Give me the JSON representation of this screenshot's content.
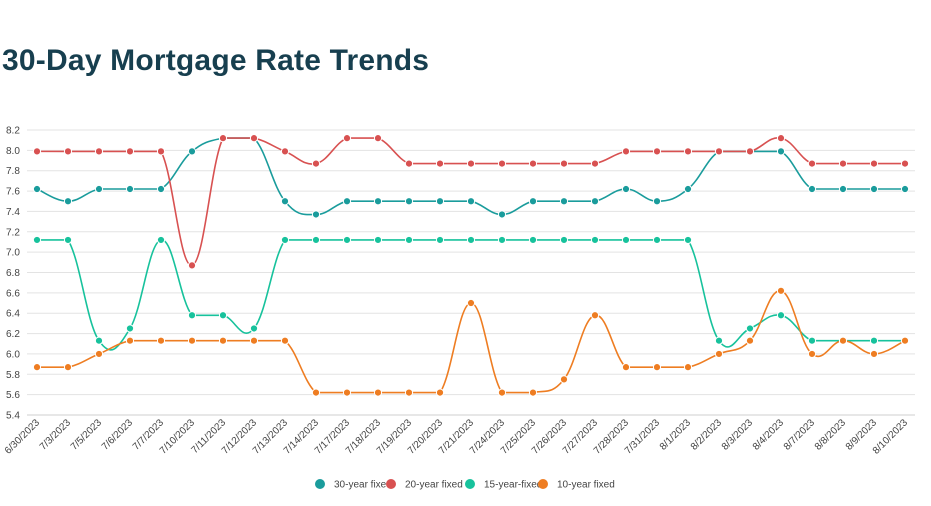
{
  "title": "30-Day Mortgage Rate Trends",
  "chart_data": {
    "type": "line",
    "title": "30-Day Mortgage Rate Trends",
    "xlabel": "",
    "ylabel": "",
    "ylim": [
      5.4,
      8.2
    ],
    "yticks": [
      "5.4",
      "5.6",
      "5.8",
      "6.0",
      "6.2",
      "6.4",
      "6.6",
      "6.8",
      "7.0",
      "7.2",
      "7.4",
      "7.6",
      "7.8",
      "8.0",
      "8.2"
    ],
    "grid": true,
    "legend_position": "bottom",
    "categories": [
      "6/30/2023",
      "7/3/2023",
      "7/5/2023",
      "7/6/2023",
      "7/7/2023",
      "7/10/2023",
      "7/11/2023",
      "7/12/2023",
      "7/13/2023",
      "7/14/2023",
      "7/17/2023",
      "7/18/2023",
      "7/19/2023",
      "7/20/2023",
      "7/21/2023",
      "7/24/2023",
      "7/25/2023",
      "7/26/2023",
      "7/27/2023",
      "7/28/2023",
      "7/31/2023",
      "8/1/2023",
      "8/2/2023",
      "8/3/2023",
      "8/4/2023",
      "8/7/2023",
      "8/8/2023",
      "8/9/2023",
      "8/10/2023"
    ],
    "series": [
      {
        "name": "30-year fixed",
        "color": "#1a9c9c",
        "values": [
          7.62,
          7.5,
          7.62,
          7.62,
          7.62,
          7.99,
          8.12,
          8.12,
          7.5,
          7.37,
          7.5,
          7.5,
          7.5,
          7.5,
          7.5,
          7.37,
          7.5,
          7.5,
          7.5,
          7.62,
          7.5,
          7.62,
          7.99,
          7.99,
          7.99,
          7.62,
          7.62,
          7.62,
          7.62
        ]
      },
      {
        "name": "20-year fixed",
        "color": "#d85151",
        "values": [
          7.99,
          7.99,
          7.99,
          7.99,
          7.99,
          6.87,
          8.12,
          8.12,
          7.99,
          7.87,
          8.12,
          8.12,
          7.87,
          7.87,
          7.87,
          7.87,
          7.87,
          7.87,
          7.87,
          7.99,
          7.99,
          7.99,
          7.99,
          7.99,
          8.12,
          7.87,
          7.87,
          7.87,
          7.87
        ]
      },
      {
        "name": "15-year-fixed",
        "color": "#17c29c",
        "values": [
          7.12,
          7.12,
          6.13,
          6.25,
          7.12,
          6.38,
          6.38,
          6.25,
          7.12,
          7.12,
          7.12,
          7.12,
          7.12,
          7.12,
          7.12,
          7.12,
          7.12,
          7.12,
          7.12,
          7.12,
          7.12,
          7.12,
          6.13,
          6.25,
          6.38,
          6.13,
          6.13,
          6.13,
          6.13
        ]
      },
      {
        "name": "10-year fixed",
        "color": "#ee7d22",
        "values": [
          5.87,
          5.87,
          6.0,
          6.13,
          6.13,
          6.13,
          6.13,
          6.13,
          6.13,
          5.62,
          5.62,
          5.62,
          5.62,
          5.62,
          6.5,
          5.62,
          5.62,
          5.75,
          6.38,
          5.87,
          5.87,
          5.87,
          6.0,
          6.13,
          6.62,
          6.0,
          6.13,
          6.0,
          6.13
        ]
      }
    ]
  }
}
